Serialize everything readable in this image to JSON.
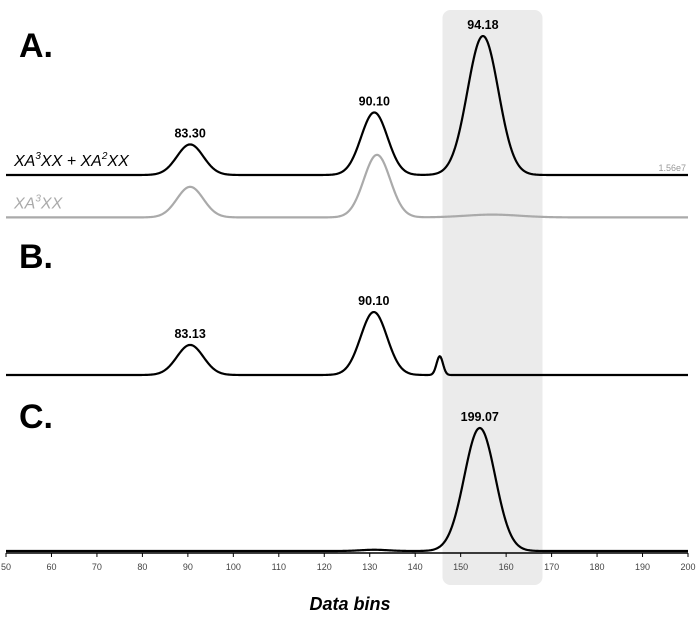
{
  "chart_data": {
    "type": "line",
    "title": "",
    "xlabel": "Data bins",
    "ylabel": "",
    "xlim": [
      50,
      200
    ],
    "x_ticks": [
      "50",
      "60",
      "70",
      "80",
      "90",
      "100",
      "110",
      "120",
      "130",
      "140",
      "150",
      "160",
      "170",
      "180",
      "190",
      "200"
    ],
    "grid": false,
    "highlight_region": {
      "x_range": [
        146,
        168
      ],
      "color": "#ebebeb"
    },
    "panels": [
      {
        "label": "A.",
        "scale_note": "1.56e7",
        "series": [
          {
            "name_parts": [
              "XA",
              "3",
              "XX + XA",
              "2",
              "XX"
            ],
            "color": "#000000",
            "baseline": 0,
            "peaks": [
              {
                "x": 90.5,
                "height": 0.22,
                "width": 2.9
              },
              {
                "x": 131.0,
                "height": 0.45,
                "width": 2.9
              },
              {
                "x": 154.9,
                "height": 1.0,
                "width": 3.4
              }
            ]
          },
          {
            "name_parts": [
              "XA",
              "3",
              "XX"
            ],
            "color": "#aaaaaa",
            "baseline": -0.305,
            "peaks": [
              {
                "x": 90.5,
                "height": 0.22,
                "width": 2.9
              },
              {
                "x": 131.6,
                "height": 0.45,
                "width": 2.9
              },
              {
                "x": 157.0,
                "height": 0.02,
                "width": 6.0
              }
            ]
          }
        ],
        "peak_labels": [
          {
            "x": 90.5,
            "text": "83.30"
          },
          {
            "x": 131.0,
            "text": "90.10"
          },
          {
            "x": 154.9,
            "text": "94.18"
          }
        ]
      },
      {
        "label": "B.",
        "series": [
          {
            "color": "#000000",
            "baseline": 0,
            "peaks": [
              {
                "x": 90.5,
                "height": 0.32,
                "width": 2.9
              },
              {
                "x": 130.9,
                "height": 0.67,
                "width": 2.9
              },
              {
                "x": 145.4,
                "height": 0.2,
                "width": 0.7
              }
            ]
          }
        ],
        "peak_labels": [
          {
            "x": 90.5,
            "text": "83.13"
          },
          {
            "x": 130.9,
            "text": "90.10"
          }
        ]
      },
      {
        "label": "C.",
        "series": [
          {
            "color": "#000000",
            "baseline": 0,
            "peaks": [
              {
                "x": 154.2,
                "height": 1.0,
                "width": 3.4
              },
              {
                "x": 131.0,
                "height": 0.01,
                "width": 3.0
              }
            ]
          }
        ],
        "peak_labels": [
          {
            "x": 154.2,
            "text": "199.07"
          }
        ]
      }
    ]
  }
}
